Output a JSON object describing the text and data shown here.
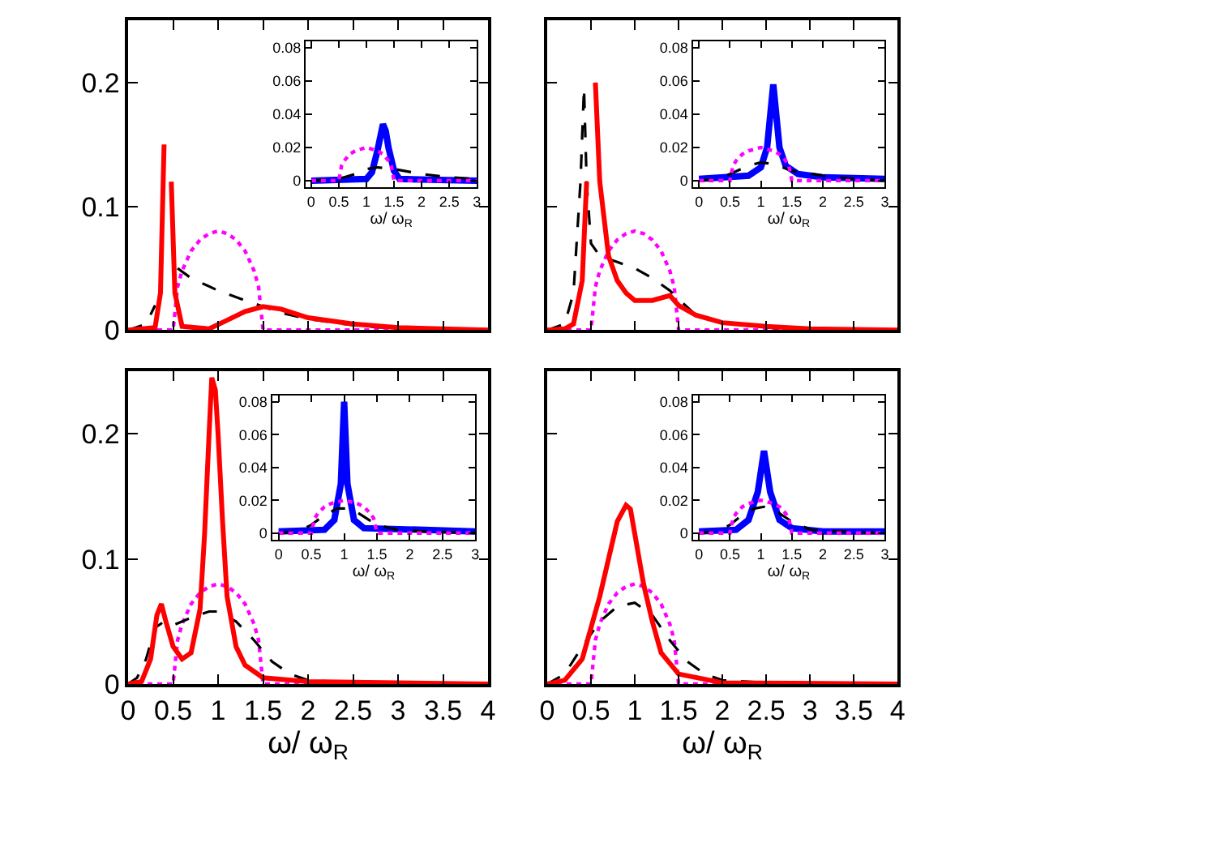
{
  "chart_data": [
    {
      "type": "line",
      "xlim": [
        0,
        4
      ],
      "ylim": [
        0,
        0.25
      ],
      "xticks": [
        0,
        0.5,
        1,
        1.5,
        2,
        2.5,
        3,
        3.5,
        4
      ],
      "yticks": [
        0,
        0.1,
        0.2
      ],
      "tick_labels": "y",
      "series": [
        {
          "color": "#ff00ff",
          "line_style": "dotted",
          "x": [
            0,
            0.5,
            0.55,
            0.6,
            0.7,
            0.8,
            0.9,
            1.0,
            1.1,
            1.2,
            1.3,
            1.4,
            1.45,
            1.5,
            4
          ],
          "values": [
            0,
            0,
            0.035,
            0.048,
            0.064,
            0.073,
            0.078,
            0.08,
            0.078,
            0.073,
            0.064,
            0.048,
            0.035,
            0,
            0
          ]
        },
        {
          "color": "#000000",
          "line_style": "dashed",
          "x": [
            0,
            0.2,
            0.3,
            0.38,
            0.44,
            0.47,
            0.5,
            0.55,
            0.7,
            1.0,
            1.3,
            1.5,
            1.7,
            2.0,
            2.5,
            3.0,
            4.0
          ],
          "values": [
            0,
            0.005,
            0.02,
            null,
            null,
            null,
            null,
            0.05,
            0.042,
            0.032,
            0.024,
            0.019,
            0.014,
            0.009,
            0.004,
            0.001,
            0
          ]
        },
        {
          "color": "#ff0000",
          "line_style": "solid",
          "x": [
            0,
            0.3,
            0.36,
            0.4,
            0.42,
            0.45,
            0.48,
            0.52,
            0.6,
            0.9,
            1.1,
            1.3,
            1.5,
            1.7,
            2.0,
            2.5,
            3.0,
            4.0
          ],
          "values": [
            0,
            0.002,
            0.03,
            0.15,
            null,
            null,
            0.12,
            0.03,
            0.003,
            0.001,
            0.008,
            0.015,
            0.019,
            0.017,
            0.01,
            0.005,
            0.002,
            0
          ]
        }
      ]
    },
    {
      "type": "line",
      "xlim": [
        -0.1,
        3
      ],
      "ylim": [
        -0.004,
        0.084
      ],
      "xticks": [
        0,
        0.5,
        1,
        1.5,
        2,
        2.5,
        3
      ],
      "yticks": [
        0,
        0.02,
        0.04,
        0.06,
        0.08
      ],
      "xlabel": "ω/ ω$_{R}$",
      "series": [
        {
          "color": "#ff00ff",
          "line_style": "dotted",
          "x": [
            0,
            0.5,
            0.55,
            0.6,
            0.7,
            0.8,
            0.9,
            1.0,
            1.1,
            1.2,
            1.3,
            1.4,
            1.45,
            1.5,
            3
          ],
          "values": [
            0,
            0,
            0.009,
            0.012,
            0.016,
            0.018,
            0.019,
            0.02,
            0.019,
            0.018,
            0.016,
            0.012,
            0.009,
            0,
            0
          ]
        },
        {
          "color": "#000000",
          "line_style": "dashed",
          "x": [
            0,
            0.5,
            0.8,
            1.0,
            1.2,
            1.5,
            2.0,
            2.5,
            3.0
          ],
          "values": [
            0,
            0.001,
            0.004,
            0.007,
            0.008,
            0.007,
            0.004,
            0.002,
            0.001
          ]
        },
        {
          "color": "#0000ff",
          "line_style": "solid",
          "x": [
            0,
            1.0,
            1.1,
            1.2,
            1.3,
            1.35,
            1.4,
            1.5,
            1.6,
            3.0
          ],
          "values": [
            0,
            0.001,
            0.005,
            0.018,
            0.034,
            0.03,
            0.02,
            0.006,
            0.001,
            0
          ]
        }
      ]
    },
    {
      "type": "line",
      "xlim": [
        0,
        4
      ],
      "ylim": [
        0,
        0.25
      ],
      "xticks": [
        0,
        0.5,
        1,
        1.5,
        2,
        2.5,
        3,
        3.5,
        4
      ],
      "yticks": [
        0,
        0.1,
        0.2
      ],
      "tick_labels": false,
      "series": [
        {
          "color": "#ff00ff",
          "line_style": "dotted",
          "x": [
            0,
            0.5,
            0.55,
            0.6,
            0.7,
            0.8,
            0.9,
            1.0,
            1.1,
            1.2,
            1.3,
            1.4,
            1.45,
            1.5,
            4
          ],
          "values": [
            0,
            0,
            0.035,
            0.048,
            0.064,
            0.073,
            0.078,
            0.08,
            0.078,
            0.073,
            0.064,
            0.048,
            0.035,
            0,
            0
          ]
        },
        {
          "color": "#000000",
          "line_style": "dashed",
          "x": [
            0,
            0.2,
            0.3,
            0.38,
            0.42,
            0.45,
            0.5,
            0.6,
            0.8,
            1.0,
            1.2,
            1.4,
            1.5,
            1.7,
            2.0,
            2.5,
            3.0,
            4.0
          ],
          "values": [
            0,
            0.005,
            0.03,
            0.12,
            0.196,
            0.12,
            0.07,
            0.06,
            0.055,
            0.05,
            0.042,
            0.032,
            0.025,
            0.012,
            0.006,
            0.002,
            0,
            0
          ]
        },
        {
          "color": "#ff0000",
          "line_style": "solid",
          "x": [
            0,
            0.2,
            0.3,
            0.4,
            0.45,
            0.5,
            0.55,
            0.6,
            0.7,
            0.8,
            0.9,
            1.0,
            1.2,
            1.4,
            1.5,
            1.7,
            2.0,
            2.5,
            3.0,
            4.0
          ],
          "values": [
            0,
            0.001,
            0.005,
            0.04,
            0.12,
            null,
            0.2,
            0.12,
            0.06,
            0.04,
            0.03,
            0.024,
            0.024,
            0.028,
            0.02,
            0.012,
            0.006,
            0.003,
            0.001,
            0
          ]
        }
      ]
    },
    {
      "type": "line",
      "xlim": [
        -0.1,
        3
      ],
      "ylim": [
        -0.004,
        0.084
      ],
      "xticks": [
        0,
        0.5,
        1,
        1.5,
        2,
        2.5,
        3
      ],
      "yticks": [
        0,
        0.02,
        0.04,
        0.06,
        0.08
      ],
      "xlabel": "ω/ ω$_{R}$",
      "series": [
        {
          "color": "#ff00ff",
          "line_style": "dotted",
          "x": [
            0,
            0.5,
            0.55,
            0.6,
            0.7,
            0.8,
            0.9,
            1.0,
            1.1,
            1.2,
            1.3,
            1.4,
            1.45,
            1.5,
            3
          ],
          "values": [
            0,
            0,
            0.009,
            0.012,
            0.016,
            0.018,
            0.019,
            0.02,
            0.019,
            0.018,
            0.016,
            0.012,
            0.009,
            0,
            0
          ]
        },
        {
          "color": "#000000",
          "line_style": "dashed",
          "x": [
            0,
            0.3,
            0.5,
            0.8,
            1.0,
            1.2,
            1.5,
            2.0,
            2.5,
            3.0
          ],
          "values": [
            0,
            0.001,
            0.004,
            0.009,
            0.011,
            0.01,
            0.006,
            0.003,
            0.001,
            0
          ]
        },
        {
          "color": "#0000ff",
          "line_style": "solid",
          "x": [
            0,
            0.8,
            1.0,
            1.1,
            1.2,
            1.3,
            1.4,
            1.6,
            2.0,
            3.0
          ],
          "values": [
            0.001,
            0.003,
            0.008,
            0.02,
            0.058,
            0.02,
            0.009,
            0.004,
            0.002,
            0.001
          ]
        }
      ]
    },
    {
      "type": "line",
      "xlim": [
        0,
        4
      ],
      "ylim": [
        0,
        0.25
      ],
      "xticks": [
        0,
        0.5,
        1,
        1.5,
        2,
        2.5,
        3,
        3.5,
        4
      ],
      "yticks": [
        0,
        0.1,
        0.2
      ],
      "xlabel": "ω/ ω$_{R}$",
      "series": [
        {
          "color": "#ff00ff",
          "line_style": "dotted",
          "x": [
            0,
            0.5,
            0.55,
            0.6,
            0.7,
            0.8,
            0.9,
            1.0,
            1.1,
            1.2,
            1.3,
            1.4,
            1.45,
            1.5,
            4
          ],
          "values": [
            0,
            0,
            0.035,
            0.048,
            0.064,
            0.073,
            0.078,
            0.08,
            0.078,
            0.073,
            0.064,
            0.048,
            0.035,
            0,
            0
          ]
        },
        {
          "color": "#000000",
          "line_style": "dashed",
          "x": [
            0,
            0.1,
            0.2,
            0.3,
            0.4,
            0.5,
            0.7,
            0.9,
            1.0,
            1.2,
            1.4,
            1.6,
            1.8,
            2.0,
            2.5,
            4.0
          ],
          "values": [
            0,
            0.005,
            0.02,
            0.045,
            0.05,
            0.047,
            0.053,
            0.058,
            0.058,
            0.05,
            0.035,
            0.018,
            0.008,
            0.003,
            0.001,
            0
          ]
        },
        {
          "color": "#ff0000",
          "line_style": "solid",
          "x": [
            0,
            0.15,
            0.25,
            0.32,
            0.37,
            0.42,
            0.5,
            0.6,
            0.7,
            0.8,
            0.85,
            0.9,
            0.93,
            0.97,
            1.0,
            1.05,
            1.1,
            1.2,
            1.3,
            1.5,
            2.0,
            4.0
          ],
          "values": [
            0,
            0.002,
            0.02,
            0.055,
            0.064,
            0.05,
            0.03,
            0.02,
            0.025,
            0.06,
            0.12,
            0.2,
            0.245,
            0.235,
            0.2,
            0.13,
            0.07,
            0.03,
            0.015,
            0.005,
            0.002,
            0
          ]
        }
      ]
    },
    {
      "type": "line",
      "xlim": [
        -0.1,
        3
      ],
      "ylim": [
        -0.004,
        0.084
      ],
      "xticks": [
        0,
        0.5,
        1,
        1.5,
        2,
        2.5,
        3
      ],
      "yticks": [
        0,
        0.02,
        0.04,
        0.06,
        0.08
      ],
      "xlabel": "ω/ ω$_{R}$",
      "series": [
        {
          "color": "#ff00ff",
          "line_style": "dotted",
          "x": [
            0,
            0.5,
            0.55,
            0.6,
            0.7,
            0.8,
            0.9,
            1.0,
            1.1,
            1.2,
            1.3,
            1.4,
            1.45,
            1.5,
            3
          ],
          "values": [
            0,
            0,
            0.009,
            0.012,
            0.016,
            0.018,
            0.019,
            0.02,
            0.019,
            0.018,
            0.016,
            0.012,
            0.009,
            0,
            0
          ]
        },
        {
          "color": "#000000",
          "line_style": "dashed",
          "x": [
            0,
            0.3,
            0.5,
            0.7,
            0.9,
            1.1,
            1.3,
            1.5,
            1.8,
            2.2,
            3.0
          ],
          "values": [
            0,
            0.001,
            0.005,
            0.011,
            0.015,
            0.015,
            0.01,
            0.005,
            0.002,
            0.001,
            0
          ]
        },
        {
          "color": "#0000ff",
          "line_style": "solid",
          "x": [
            0,
            0.7,
            0.85,
            0.95,
            1.0,
            1.05,
            1.15,
            1.3,
            3.0
          ],
          "values": [
            0.001,
            0.002,
            0.008,
            0.03,
            0.08,
            0.03,
            0.008,
            0.003,
            0.001
          ]
        }
      ]
    },
    {
      "type": "line",
      "xlim": [
        0,
        4
      ],
      "ylim": [
        0,
        0.25
      ],
      "xticks": [
        0,
        0.5,
        1,
        1.5,
        2,
        2.5,
        3,
        3.5,
        4
      ],
      "yticks": [
        0,
        0.1,
        0.2
      ],
      "xlabel": "ω/ ω$_{R}$",
      "tick_labels": "x",
      "series": [
        {
          "color": "#ff00ff",
          "line_style": "dotted",
          "x": [
            0,
            0.5,
            0.55,
            0.6,
            0.7,
            0.8,
            0.9,
            1.0,
            1.1,
            1.2,
            1.3,
            1.4,
            1.45,
            1.5,
            4
          ],
          "values": [
            0,
            0,
            0.035,
            0.048,
            0.064,
            0.073,
            0.078,
            0.08,
            0.078,
            0.073,
            0.064,
            0.048,
            0.035,
            0,
            0
          ]
        },
        {
          "color": "#000000",
          "line_style": "dashed",
          "x": [
            0,
            0.2,
            0.4,
            0.6,
            0.8,
            1.0,
            1.2,
            1.4,
            1.6,
            1.8,
            2.0,
            2.5,
            4.0
          ],
          "values": [
            0,
            0.008,
            0.03,
            0.05,
            0.062,
            0.065,
            0.055,
            0.035,
            0.018,
            0.008,
            0.003,
            0.001,
            0
          ]
        },
        {
          "color": "#ff0000",
          "line_style": "solid",
          "x": [
            0,
            0.2,
            0.4,
            0.6,
            0.8,
            0.9,
            0.95,
            1.0,
            1.1,
            1.2,
            1.3,
            1.5,
            2.0,
            4.0
          ],
          "values": [
            0,
            0.003,
            0.02,
            0.07,
            0.13,
            0.143,
            0.14,
            0.12,
            0.08,
            0.05,
            0.025,
            0.008,
            0.001,
            0
          ]
        }
      ]
    },
    {
      "type": "line",
      "xlim": [
        -0.1,
        3
      ],
      "ylim": [
        -0.004,
        0.084
      ],
      "xticks": [
        0,
        0.5,
        1,
        1.5,
        2,
        2.5,
        3
      ],
      "yticks": [
        0,
        0.02,
        0.04,
        0.06,
        0.08
      ],
      "xlabel": "ω/ ω$_{R}$",
      "series": [
        {
          "color": "#ff00ff",
          "line_style": "dotted",
          "x": [
            0,
            0.5,
            0.55,
            0.6,
            0.7,
            0.8,
            0.9,
            1.0,
            1.1,
            1.2,
            1.3,
            1.4,
            1.45,
            1.5,
            3
          ],
          "values": [
            0,
            0,
            0.009,
            0.012,
            0.016,
            0.018,
            0.019,
            0.02,
            0.019,
            0.018,
            0.016,
            0.012,
            0.009,
            0,
            0
          ]
        },
        {
          "color": "#000000",
          "line_style": "dashed",
          "x": [
            0,
            0.3,
            0.5,
            0.7,
            0.9,
            1.05,
            1.3,
            1.5,
            1.8,
            2.2,
            3.0
          ],
          "values": [
            0,
            0.001,
            0.005,
            0.011,
            0.015,
            0.016,
            0.012,
            0.007,
            0.002,
            0.001,
            0
          ]
        },
        {
          "color": "#0000ff",
          "line_style": "solid",
          "x": [
            0,
            0.6,
            0.8,
            0.95,
            1.05,
            1.15,
            1.3,
            1.5,
            2.0,
            3.0
          ],
          "values": [
            0.001,
            0.002,
            0.008,
            0.025,
            0.05,
            0.025,
            0.008,
            0.003,
            0.001,
            0.001
          ]
        }
      ]
    }
  ]
}
